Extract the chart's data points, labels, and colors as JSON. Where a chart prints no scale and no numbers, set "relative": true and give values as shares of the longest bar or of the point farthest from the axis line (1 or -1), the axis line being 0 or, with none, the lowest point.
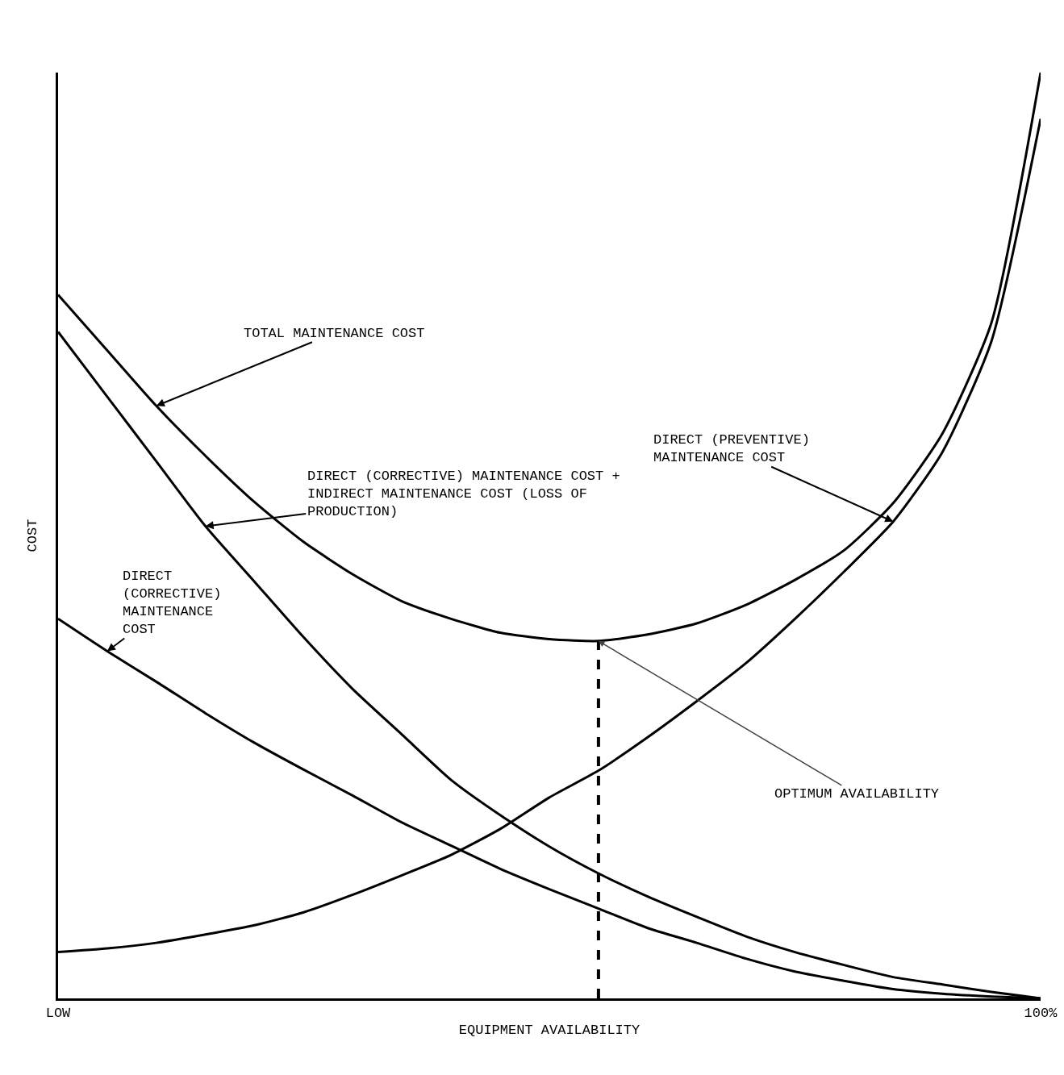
{
  "chart_data": {
    "type": "line",
    "relative": true,
    "xlabel": "EQUIPMENT AVAILABILITY",
    "ylabel": "COST",
    "categories": [
      "LOW",
      null,
      null,
      null,
      null,
      null,
      null,
      null,
      null,
      null,
      null,
      null,
      null,
      null,
      null,
      null,
      null,
      null,
      null,
      null,
      "100%"
    ],
    "series": [
      {
        "name": "TOTAL MAINTENANCE COST",
        "color": "#000000",
        "values": [
          0.76,
          0.7,
          0.64,
          0.586,
          0.536,
          0.493,
          0.458,
          0.429,
          0.41,
          0.395,
          0.388,
          0.386,
          0.393,
          0.405,
          0.425,
          0.452,
          0.484,
          0.535,
          0.61,
          0.73,
          1
        ]
      },
      {
        "name": "DIRECT (PREVENTIVE) MAINTENANCE COST",
        "color": "#000000",
        "values": [
          0.05,
          0.054,
          0.06,
          0.069,
          0.079,
          0.093,
          0.112,
          0.133,
          0.155,
          0.183,
          0.217,
          0.246,
          0.282,
          0.321,
          0.362,
          0.41,
          0.461,
          0.515,
          0.59,
          0.71,
          0.95
        ]
      },
      {
        "name": "DIRECT (CORRECTIVE) MAINTENANCE COST + INDIRECT MAINTENANCE COST (LOSS OF PRODUCTION)",
        "color": "#000000",
        "values": [
          0.72,
          0.65,
          0.58,
          0.51,
          0.45,
          0.39,
          0.334,
          0.285,
          0.236,
          0.198,
          0.164,
          0.135,
          0.11,
          0.088,
          0.067,
          0.05,
          0.036,
          0.023,
          0.015,
          0.007,
          0
        ]
      },
      {
        "name": "DIRECT (CORRECTIVE) MAINTENANCE COST",
        "color": "#000000",
        "values": [
          0.41,
          0.375,
          0.342,
          0.308,
          0.276,
          0.247,
          0.219,
          0.19,
          0.165,
          0.14,
          0.118,
          0.097,
          0.076,
          0.06,
          0.043,
          0.029,
          0.019,
          0.01,
          0.005,
          0.002,
          0
        ]
      }
    ],
    "annotations": [
      "OPTIMUM AVAILABILITY"
    ],
    "line_style": "solid",
    "marker": "none"
  }
}
